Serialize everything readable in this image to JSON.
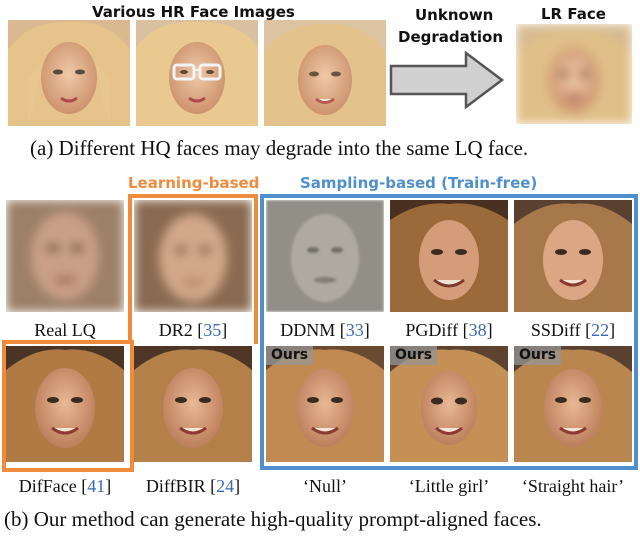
{
  "panel_a": {
    "hr_label": "Various HR Face Images",
    "arrow_label_1": "Unknown",
    "arrow_label_2": "Degradation",
    "lr_label": "LR Face",
    "caption": "(a) Different HQ faces may degrade into the same LQ face."
  },
  "panel_b": {
    "learning_label": "Learning-based",
    "sampling_label": "Sampling-based (Train-free)",
    "ours_tag": "Ours",
    "labels": {
      "real_lq": "Real LQ",
      "dr2": "DR2 [",
      "dr2_ref": "35",
      "ddnm": "DDNM [",
      "ddnm_ref": "33",
      "pgdiff": "PGDiff [",
      "pgdiff_ref": "38",
      "ssdiff": "SSDiff [",
      "ssdiff_ref": "22",
      "difface": "DifFace [",
      "difface_ref": "41",
      "diffbir": "DiffBIR [",
      "diffbir_ref": "24",
      "close": "]",
      "null_prompt": "‘Null’",
      "little_girl": "‘Little girl’",
      "straight_hair": "‘Straight hair’"
    },
    "caption": "(b) Our method can generate high-quality prompt-aligned faces."
  },
  "colors": {
    "learning": "#ef8b3c",
    "sampling": "#4f8fcb",
    "ref": "#3a6ab8"
  }
}
